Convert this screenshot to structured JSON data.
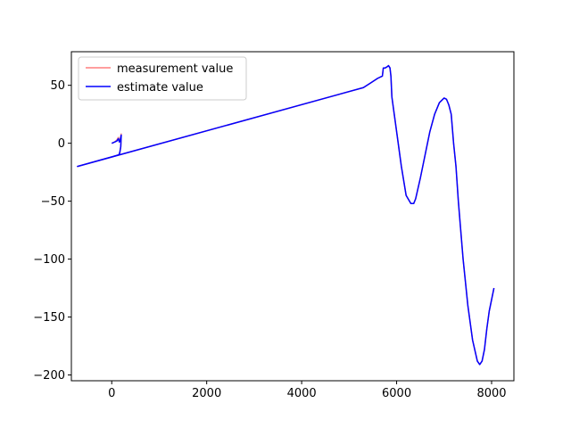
{
  "chart_data": {
    "type": "line",
    "title": "",
    "xlabel": "",
    "ylabel": "",
    "xlim": [
      -850,
      8470
    ],
    "ylim": [
      -205,
      79
    ],
    "xticks": [
      0,
      2000,
      4000,
      6000,
      8000
    ],
    "yticks": [
      -200,
      -150,
      -100,
      -50,
      0,
      50
    ],
    "grid": false,
    "legend_position": "upper-left",
    "series": [
      {
        "name": "measurement value",
        "color": "#ff7f7f",
        "x": [
          0,
          60,
          110,
          140,
          160,
          180,
          200,
          190,
          170,
          150,
          -720,
          5300,
          5450,
          5600,
          5700,
          5720,
          5760,
          5800,
          5830,
          5860,
          5880,
          5900,
          5950,
          6000,
          6100,
          6200,
          6300,
          6360,
          6400,
          6500,
          6600,
          6700,
          6800,
          6900,
          7000,
          7050,
          7100,
          7150,
          7180,
          7200,
          7250,
          7300,
          7350,
          7400,
          7500,
          7600,
          7700,
          7750,
          7800,
          7850,
          7900,
          7950,
          8000,
          8050
        ],
        "y": [
          0,
          1,
          3,
          5,
          2,
          4,
          8,
          -3,
          -8,
          -10,
          -20,
          48,
          52,
          56,
          58,
          65,
          65,
          66,
          67,
          65,
          58,
          40,
          25,
          10,
          -20,
          -45,
          -52,
          -52,
          -48,
          -30,
          -10,
          10,
          25,
          35,
          39,
          38,
          33,
          25,
          10,
          0,
          -20,
          -50,
          -75,
          -100,
          -140,
          -170,
          -188,
          -191,
          -188,
          -178,
          -160,
          -145,
          -135,
          -125
        ]
      },
      {
        "name": "estimate value",
        "color": "#0000ff",
        "x": [
          0,
          60,
          110,
          140,
          160,
          180,
          200,
          190,
          170,
          150,
          -720,
          5300,
          5450,
          5600,
          5700,
          5720,
          5760,
          5800,
          5830,
          5860,
          5880,
          5900,
          5950,
          6000,
          6100,
          6200,
          6300,
          6360,
          6400,
          6500,
          6600,
          6700,
          6800,
          6900,
          7000,
          7050,
          7100,
          7150,
          7180,
          7200,
          7250,
          7300,
          7350,
          7400,
          7500,
          7600,
          7700,
          7750,
          7800,
          7850,
          7900,
          7950,
          8000,
          8050
        ],
        "y": [
          0,
          1,
          2,
          4,
          1,
          3,
          7,
          -3,
          -8,
          -10,
          -20,
          48,
          52,
          56,
          58,
          65,
          65,
          66,
          67,
          65,
          58,
          40,
          25,
          10,
          -20,
          -45,
          -52,
          -52,
          -48,
          -30,
          -10,
          10,
          25,
          35,
          39,
          38,
          33,
          25,
          10,
          0,
          -20,
          -50,
          -75,
          -100,
          -140,
          -170,
          -188,
          -191,
          -188,
          -178,
          -160,
          -145,
          -135,
          -125
        ]
      }
    ]
  }
}
